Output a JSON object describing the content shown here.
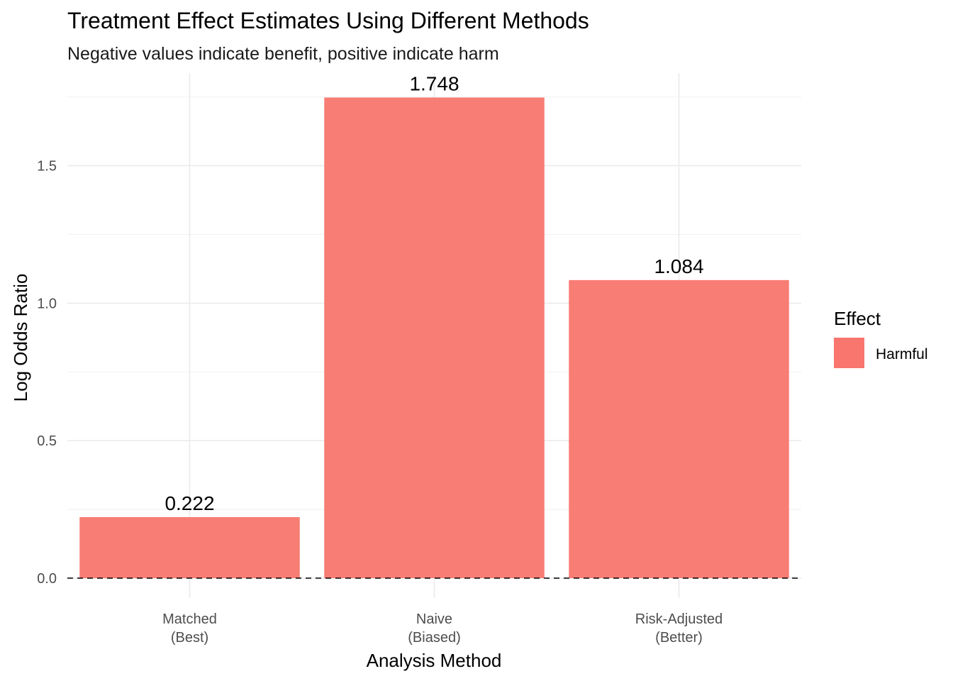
{
  "chart_data": {
    "type": "bar",
    "title": "Treatment Effect Estimates Using Different Methods",
    "subtitle": "Negative values indicate benefit, positive indicate harm",
    "xlabel": "Analysis Method",
    "ylabel": "Log Odds Ratio",
    "categories": [
      [
        "Matched",
        "(Best)"
      ],
      [
        "Naive",
        "(Biased)"
      ],
      [
        "Risk-Adjusted",
        "(Better)"
      ]
    ],
    "values": [
      0.222,
      1.748,
      1.084
    ],
    "value_labels": [
      "0.222",
      "1.748",
      "1.084"
    ],
    "ylim": [
      0,
      1.8
    ],
    "yticks": [
      0.0,
      0.5,
      1.0,
      1.5
    ],
    "ytick_labels": [
      "0.0",
      "0.5",
      "1.0",
      "1.5"
    ],
    "reference_line": {
      "y": 0,
      "style": "dashed"
    },
    "grid": true,
    "bar_color": "#F8766D",
    "legend": {
      "title": "Effect",
      "placement": "right",
      "entries": [
        {
          "label": "Harmful",
          "color": "#F8766D"
        }
      ]
    }
  }
}
